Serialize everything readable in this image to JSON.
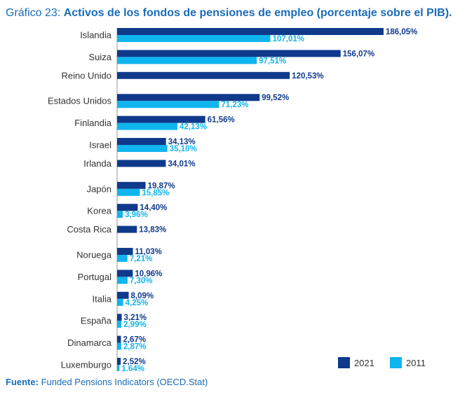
{
  "chart_data": {
    "type": "bar",
    "orientation": "horizontal",
    "title_prefix": "Gráfico 23:",
    "title": "Activos de los fondos de pensiones de empleo (porcentaje sobre el PIB).",
    "source_label": "Fuente:",
    "source_text": "Funded Pensions Indicators (OECD.Stat)",
    "xlabel": "",
    "ylabel": "",
    "xlim": [
      0,
      200
    ],
    "legend_position": "bottom-right",
    "categories": [
      "Islandia",
      "Suiza",
      "Reino Unido",
      "Estados Unidos",
      "Finlandia",
      "Israel",
      "Irlanda",
      "Japón",
      "Korea",
      "Costa Rica",
      "Noruega",
      "Portugal",
      "Italia",
      "España",
      "Dinamarca",
      "Luxemburgo"
    ],
    "series": [
      {
        "name": "2021",
        "color": "#0f3a8c",
        "values": [
          186.05,
          156.07,
          120.53,
          99.52,
          61.56,
          34.13,
          34.01,
          19.87,
          14.4,
          13.83,
          11.03,
          10.96,
          8.09,
          3.21,
          2.67,
          2.52
        ],
        "labels": [
          "186,05%",
          "156,07%",
          "120,53%",
          "99,52%",
          "61,56%",
          "34,13%",
          "34,01%",
          "19,87%",
          "14,40%",
          "13,83%",
          "11,03%",
          "10,96%",
          "8,09%",
          "3,21%",
          "2,67%",
          "2,52%"
        ]
      },
      {
        "name": "2011",
        "color": "#0fb5ee",
        "values": [
          107.01,
          97.51,
          null,
          71.23,
          42.13,
          35.1,
          null,
          15.85,
          3.96,
          null,
          7.21,
          7.3,
          4.25,
          2.99,
          2.87,
          1.64
        ],
        "labels": [
          "107,01%",
          "97,51%",
          null,
          "71,23%",
          "42,13%",
          "35,10%",
          null,
          "15,85%",
          "3,96%",
          null,
          "7,21%",
          "7,30%",
          "4,25%",
          "2,99%",
          "2,87%",
          "1,64%"
        ]
      }
    ]
  }
}
